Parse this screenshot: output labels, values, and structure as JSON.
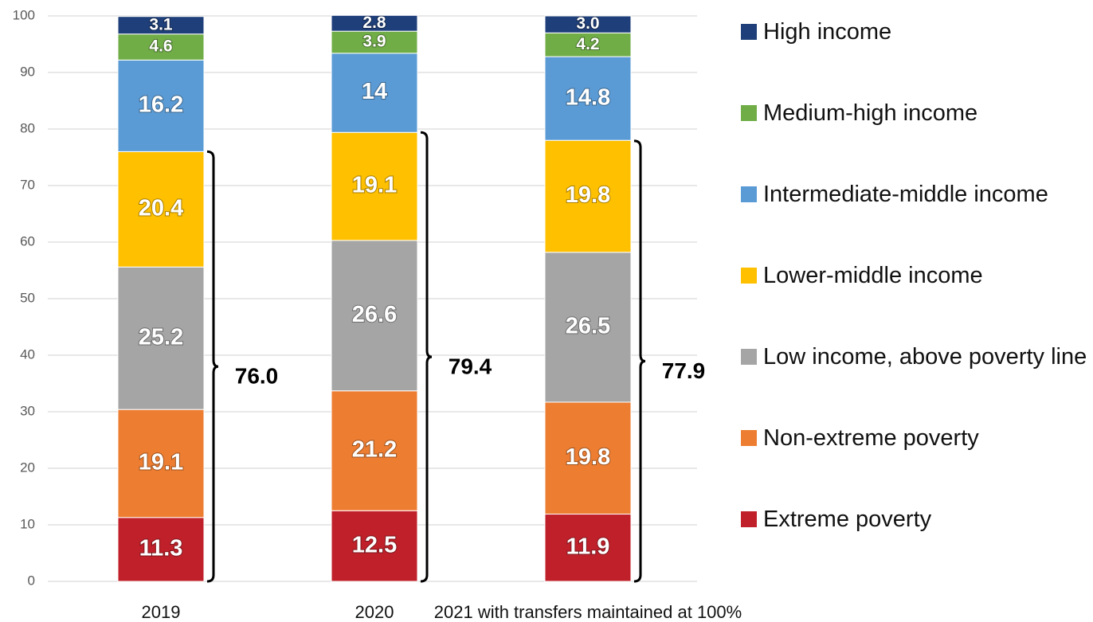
{
  "chart_data": {
    "type": "bar",
    "stacked": true,
    "categories": [
      "2019",
      "2020",
      "2021 with transfers maintained at 100%"
    ],
    "series": [
      {
        "name": "Extreme poverty",
        "color": "#c0202a",
        "values": [
          11.3,
          12.5,
          11.9
        ],
        "value_labels": [
          "11.3",
          "12.5",
          "11.9"
        ]
      },
      {
        "name": "Non-extreme poverty",
        "color": "#ed7d31",
        "values": [
          19.1,
          21.2,
          19.8
        ],
        "value_labels": [
          "19.1",
          "21.2",
          "19.8"
        ]
      },
      {
        "name": "Low income, above poverty line",
        "color": "#a5a5a5",
        "values": [
          25.2,
          26.6,
          26.5
        ],
        "value_labels": [
          "25.2",
          "26.6",
          "26.5"
        ]
      },
      {
        "name": "Lower-middle income",
        "color": "#ffc000",
        "values": [
          20.4,
          19.1,
          19.8
        ],
        "value_labels": [
          "20.4",
          "19.1",
          "19.8"
        ]
      },
      {
        "name": "Intermediate-middle income",
        "color": "#5b9bd5",
        "values": [
          16.2,
          14,
          14.8
        ],
        "value_labels": [
          "16.2",
          "14",
          "14.8"
        ]
      },
      {
        "name": "Medium-high income",
        "color": "#70ad47",
        "values": [
          4.6,
          3.9,
          4.2
        ],
        "value_labels": [
          "4.6",
          "3.9",
          "4.2"
        ]
      },
      {
        "name": "High income",
        "color": "#1f3f7a",
        "values": [
          3.1,
          2.8,
          3.0
        ],
        "value_labels": [
          "3.1",
          "2.8",
          "3.0"
        ]
      }
    ],
    "annotations": [
      {
        "value": 76,
        "label": "76.0"
      },
      {
        "value": 79.4,
        "label": "79.4"
      },
      {
        "value": 77.9,
        "label": "77.9"
      }
    ],
    "ylim": [
      0,
      100
    ],
    "yticks": [
      0,
      10,
      20,
      30,
      40,
      50,
      60,
      70,
      80,
      90,
      100
    ],
    "grid": true,
    "legend": "right"
  }
}
